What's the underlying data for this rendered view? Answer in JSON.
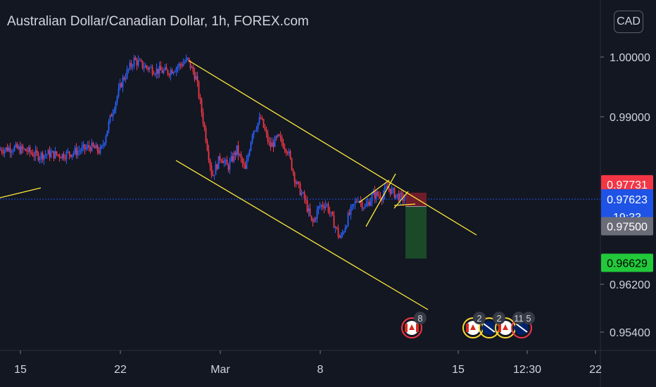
{
  "header": {
    "title": "Australian Dollar/Canadian Dollar, 1h, FOREX.com"
  },
  "currency_button": {
    "label": "CAD"
  },
  "colors": {
    "background": "#131722",
    "up_candle": "#2962ff",
    "down_candle": "#f23645",
    "trendline": "#ffeb3b",
    "stop_zone": "#7a1e2a",
    "target_zone": "#1b4d2a",
    "current_price": "#1e53e5",
    "stop_badge": "#f23645",
    "target_badge": "#22c93a",
    "entry_badge": "#6a6d78"
  },
  "chart_data": {
    "type": "candlestick",
    "symbol": "Australian Dollar/Canadian Dollar",
    "interval": "1h",
    "source": "FOREX.com",
    "y_axis_ticks": [
      "1.00000",
      "0.99000",
      "0.96200",
      "0.95400"
    ],
    "y_axis_tick_values": [
      1.0,
      0.99,
      0.962,
      0.954
    ],
    "ylim": [
      0.9525,
      1.0085
    ],
    "x_axis_ticks": [
      "15",
      "22",
      "Mar",
      "8",
      "15",
      "12:30",
      "22"
    ],
    "price_badges": {
      "stop": "0.97731",
      "current": "0.97623",
      "countdown": "19:33",
      "entry": "0.97500",
      "target": "0.96629"
    },
    "price_levels": {
      "stop": 0.97731,
      "current": 0.97623,
      "entry": 0.975,
      "target": 0.96629
    },
    "price_path": [
      [
        0,
        0.9845
      ],
      [
        20,
        0.9848
      ],
      [
        40,
        0.9843
      ],
      [
        55,
        0.9835
      ],
      [
        70,
        0.9838
      ],
      [
        90,
        0.9836
      ],
      [
        110,
        0.9842
      ],
      [
        130,
        0.985
      ],
      [
        145,
        0.9842
      ],
      [
        160,
        0.9905
      ],
      [
        175,
        0.996
      ],
      [
        192,
        0.9995
      ],
      [
        205,
        0.9985
      ],
      [
        222,
        0.9978
      ],
      [
        240,
        0.9975
      ],
      [
        255,
        0.9985
      ],
      [
        268,
        0.9995
      ],
      [
        280,
        0.9965
      ],
      [
        292,
        0.988
      ],
      [
        303,
        0.98
      ],
      [
        315,
        0.9835
      ],
      [
        325,
        0.9815
      ],
      [
        338,
        0.9845
      ],
      [
        350,
        0.981
      ],
      [
        360,
        0.9875
      ],
      [
        372,
        0.9897
      ],
      [
        385,
        0.985
      ],
      [
        397,
        0.9865
      ],
      [
        410,
        0.9845
      ],
      [
        422,
        0.979
      ],
      [
        435,
        0.976
      ],
      [
        445,
        0.972
      ],
      [
        455,
        0.975
      ],
      [
        465,
        0.9755
      ],
      [
        475,
        0.9725
      ],
      [
        485,
        0.9695
      ],
      [
        497,
        0.9735
      ],
      [
        510,
        0.9765
      ],
      [
        520,
        0.9748
      ],
      [
        532,
        0.977
      ],
      [
        545,
        0.9768
      ],
      [
        552,
        0.9783
      ],
      [
        560,
        0.9773
      ],
      [
        570,
        0.9765
      ],
      [
        578,
        0.9762
      ]
    ],
    "annotations": {
      "event_badges": [
        "8",
        "2",
        "2",
        "11",
        "5"
      ]
    }
  }
}
